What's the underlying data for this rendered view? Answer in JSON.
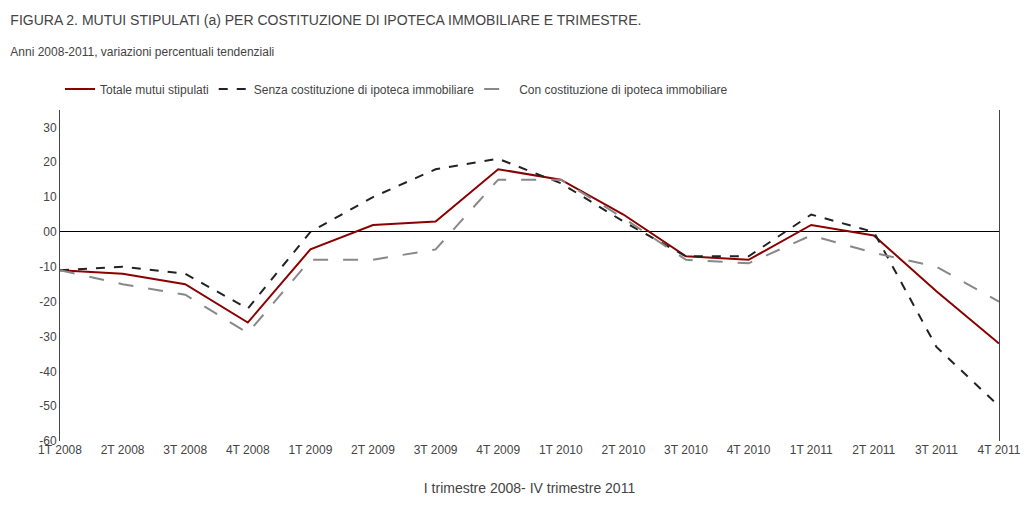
{
  "chart_data": {
    "type": "line",
    "title": "FIGURA 2. MUTUI STIPULATI (a) PER COSTITUZIONE DI IPOTECA IMMOBILIARE E TRIMESTRE.",
    "subtitle": "Anni 2008-2011, variazioni percentuali tendenziali",
    "x_label": "I trimestre 2008- IV trimestre 2011",
    "categories": [
      "1T 2008",
      "2T 2008",
      "3T 2008",
      "4T 2008",
      "1T 2009",
      "2T 2009",
      "3T 2009",
      "4T 2009",
      "1T 2010",
      "2T 2010",
      "3T 2010",
      "4T 2010",
      "1T 2011",
      "2T 2011",
      "3T 2011",
      "4T 2011"
    ],
    "series": [
      {
        "name": "Totale mutui stipulati",
        "color": "#8B0000",
        "line_style": "solid",
        "values": [
          -11,
          -12,
          -15,
          -26,
          -5,
          2,
          3,
          18,
          15,
          5,
          -7,
          -8,
          2,
          -1,
          -17,
          -32
        ]
      },
      {
        "name": "Senza costituzione di ipoteca immobiliare",
        "color": "#222222",
        "line_style": "dash",
        "values": [
          -11,
          -10,
          -12,
          -22,
          0,
          10,
          18,
          21,
          14,
          3,
          -7,
          -7,
          5,
          0,
          -33,
          -50
        ]
      },
      {
        "name": "Con costituzione di ipoteca immobiliare",
        "color": "#888888",
        "line_style": "longdash",
        "values": [
          -11,
          -15,
          -18,
          -29,
          -8,
          -8,
          -5,
          15,
          15,
          4,
          -8,
          -9,
          -1,
          -6,
          -10,
          -20
        ]
      }
    ],
    "ylim": [
      -60,
      35
    ],
    "yticks": [
      -60,
      -50,
      -40,
      -30,
      -20,
      -10,
      {
        "value": 0,
        "label": "00"
      },
      10,
      20,
      30
    ],
    "grid": false,
    "legend": "upper left"
  }
}
